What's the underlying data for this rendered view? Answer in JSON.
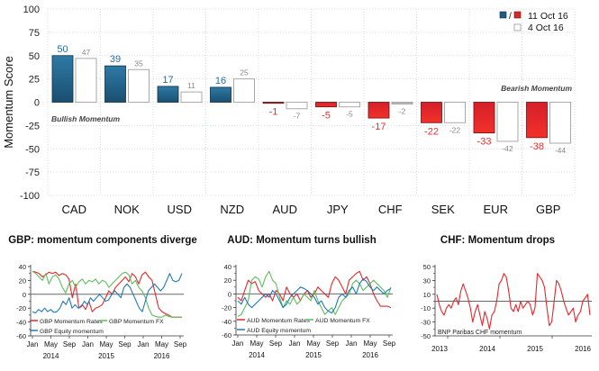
{
  "chart_data": [
    {
      "type": "bar",
      "title": "",
      "xlabel": "",
      "ylabel": "Momentum Score",
      "ylim": [
        -100,
        100
      ],
      "yticks": [
        100,
        75,
        50,
        25,
        0,
        -25,
        -50,
        -75,
        -100
      ],
      "grid": true,
      "categories": [
        "CAD",
        "NOK",
        "USD",
        "NZD",
        "AUD",
        "JPY",
        "CHF",
        "SEK",
        "EUR",
        "GBP"
      ],
      "series": [
        {
          "name": "11 Oct 16",
          "values": [
            50,
            39,
            17,
            16,
            -1,
            -5,
            -17,
            -22,
            -33,
            -38
          ],
          "positive_color": "#1f5a80",
          "negative_color": "#e02525"
        },
        {
          "name": "4 Oct 16",
          "values": [
            47,
            35,
            11,
            25,
            -7,
            -5,
            -2,
            -22,
            -42,
            -44
          ],
          "color": "#ffffff"
        }
      ],
      "legend": {
        "position": "top-right",
        "entries": [
          "11 Oct 16",
          "4 Oct 16"
        ]
      },
      "annotations": [
        "Bullish Momentum",
        "Bearish Momentum"
      ]
    },
    {
      "type": "line",
      "title": "GBP: momentum components diverge",
      "ylim": [
        -60,
        40
      ],
      "yticks": [
        40,
        20,
        0,
        -20,
        -40,
        -60
      ],
      "xticks": [
        "Jan",
        "May",
        "Sep",
        "Jan",
        "May",
        "Sep",
        "Jan",
        "May",
        "Sep"
      ],
      "years": [
        "2014",
        "2015",
        "2016"
      ],
      "series": [
        {
          "name": "GBP Momentum Rates",
          "color": "#e8262a",
          "values": [
            33,
            32,
            30,
            25,
            28,
            32,
            30,
            32,
            27,
            30,
            28,
            22,
            -5,
            15,
            -20,
            -15,
            -22,
            -10,
            -25,
            -20,
            -18,
            -15,
            -5,
            5,
            0,
            10,
            15,
            20,
            25,
            18,
            30,
            25,
            15,
            28,
            32,
            25,
            20,
            0,
            -20,
            -25,
            -28,
            -30,
            -33,
            -33,
            -33,
            -33
          ]
        },
        {
          "name": "GBP Momentum FX",
          "color": "#5cbf5c",
          "values": [
            33,
            30,
            25,
            20,
            30,
            15,
            25,
            28,
            22,
            10,
            2,
            15,
            20,
            10,
            18,
            22,
            15,
            20,
            18,
            22,
            15,
            20,
            18,
            10,
            15,
            20,
            25,
            30,
            32,
            28,
            15,
            20,
            10,
            5,
            -5,
            -20,
            -30,
            -32,
            -33,
            -33,
            -30,
            -32,
            -33,
            -33,
            -33,
            -33
          ]
        },
        {
          "name": "GBP Equity momentum",
          "color": "#1f7ab8",
          "values": [
            -25,
            -27,
            -22,
            -25,
            -20,
            -25,
            -22,
            -26,
            -25,
            -20,
            -10,
            -15,
            -5,
            -20,
            -15,
            -20,
            -18,
            -10,
            -15,
            -5,
            -10,
            -5,
            0,
            -5,
            -10,
            -8,
            0,
            5,
            0,
            -5,
            10,
            15,
            10,
            0,
            -10,
            -20,
            -25,
            -10,
            5,
            10,
            15,
            10,
            5,
            10,
            20,
            30,
            20,
            18,
            20,
            30
          ]
        }
      ],
      "hline": 0
    },
    {
      "type": "line",
      "title": "AUD: Momentum turns bullish",
      "ylim": [
        -60,
        40
      ],
      "yticks": [
        40,
        20,
        0,
        -20,
        -40,
        -60
      ],
      "xticks": [
        "Jan",
        "May",
        "Sep",
        "Jan",
        "May",
        "Sep",
        "Jan",
        "May",
        "Sep"
      ],
      "years": [
        "2014",
        "2015",
        "2016"
      ],
      "series": [
        {
          "name": "AUD Momentum Rates",
          "color": "#e8262a",
          "values": [
            -5,
            -10,
            5,
            20,
            15,
            18,
            5,
            0,
            -5,
            0,
            -10,
            5,
            0,
            -10,
            10,
            0,
            -5,
            0,
            -10,
            0,
            5,
            -5,
            0,
            10,
            5,
            0,
            -5,
            15,
            25,
            20,
            10,
            0,
            20,
            25,
            30,
            33,
            20,
            25,
            15,
            0,
            -10,
            -18,
            -18,
            -18,
            -20
          ]
        },
        {
          "name": "AUD Momentum FX",
          "color": "#5cbf5c",
          "values": [
            -33,
            -30,
            -20,
            -10,
            20,
            25,
            22,
            10,
            25,
            33,
            20,
            15,
            -5,
            -20,
            -10,
            -15,
            -5,
            -15,
            -10,
            0,
            -5,
            -10,
            5,
            -10,
            -20,
            -30,
            -25,
            -20,
            -30,
            -20,
            -10,
            -5,
            0,
            15,
            20,
            15,
            5,
            10,
            15,
            20,
            15,
            10,
            5,
            -5,
            10
          ]
        },
        {
          "name": "AUD Equity momentum",
          "color": "#1f7ab8",
          "values": [
            -10,
            -15,
            -5,
            -15,
            -20,
            -15,
            -10,
            -5,
            0,
            -5,
            5,
            0,
            -10,
            -20,
            -15,
            -5,
            0,
            5,
            10,
            8,
            5,
            0,
            -5,
            -15,
            -10,
            -20,
            -25,
            -28,
            -20,
            -5,
            0,
            -5,
            5,
            10,
            0,
            15,
            22,
            18,
            10,
            5,
            10,
            5,
            0,
            5,
            8
          ]
        }
      ],
      "hline": 0
    },
    {
      "type": "line",
      "title": "CHF: Momentum drops",
      "ylim": [
        -50,
        50
      ],
      "yticks": [
        50,
        30,
        10,
        -10,
        -30,
        -50
      ],
      "years": [
        "2013",
        "2014",
        "2015",
        "2016"
      ],
      "series": [
        {
          "name": "BNP Paribas CHF momentum",
          "color": "#e8262a",
          "values": [
            10,
            -5,
            -15,
            -20,
            -10,
            -5,
            -10,
            0,
            5,
            -5,
            15,
            25,
            15,
            5,
            -10,
            -30,
            -15,
            -5,
            -20,
            -35,
            -15,
            -25,
            -40,
            -20,
            -15,
            0,
            25,
            30,
            40,
            35,
            15,
            -10,
            -15,
            -5,
            -15,
            0,
            -10,
            -5,
            0,
            -5,
            -20,
            -10,
            40,
            35,
            30,
            20,
            -10,
            -35,
            -30,
            0,
            30,
            25,
            15,
            0,
            -10,
            -20,
            -15,
            -10,
            -30,
            -20,
            -15,
            0,
            5,
            10,
            -20
          ]
        }
      ],
      "hline": 0
    }
  ]
}
